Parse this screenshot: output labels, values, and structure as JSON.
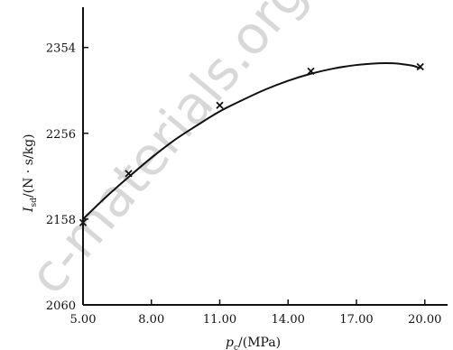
{
  "watermark": "c-materials.org.cn",
  "chart_data": {
    "type": "line",
    "xlabel_var": "p",
    "xlabel_sub": "c",
    "xlabel_unit": "/(MPa)",
    "ylabel_var": "I",
    "ylabel_sub": "sd",
    "ylabel_unit": "/(N · s/kg)",
    "xlim": [
      5.0,
      21.0
    ],
    "ylim": [
      2060,
      2400
    ],
    "x_ticks": [
      {
        "value": 5.0,
        "label": "5.00"
      },
      {
        "value": 8.0,
        "label": "8.00"
      },
      {
        "value": 11.0,
        "label": "11.00"
      },
      {
        "value": 14.0,
        "label": "14.00"
      },
      {
        "value": 17.0,
        "label": "17.00"
      },
      {
        "value": 20.0,
        "label": "20.00"
      }
    ],
    "y_ticks": [
      {
        "value": 2060,
        "label": "2060"
      },
      {
        "value": 2158,
        "label": "2158"
      },
      {
        "value": 2256,
        "label": "2256"
      },
      {
        "value": 2354,
        "label": "2354"
      }
    ],
    "curve": {
      "x": [
        5.0,
        6.0,
        7.0,
        8.0,
        9.0,
        10.0,
        11.0,
        12.0,
        13.0,
        14.0,
        15.0,
        16.0,
        17.0,
        18.0,
        18.6,
        19.0,
        19.5,
        19.8
      ],
      "y": [
        2158,
        2183,
        2206,
        2228,
        2248,
        2265,
        2281,
        2294,
        2306,
        2316,
        2324,
        2330,
        2334,
        2336,
        2336,
        2335,
        2333,
        2330
      ]
    },
    "points": {
      "x": [
        5.0,
        7.0,
        11.0,
        15.0,
        19.8
      ],
      "y": [
        2154,
        2210,
        2288,
        2327,
        2332
      ]
    }
  }
}
